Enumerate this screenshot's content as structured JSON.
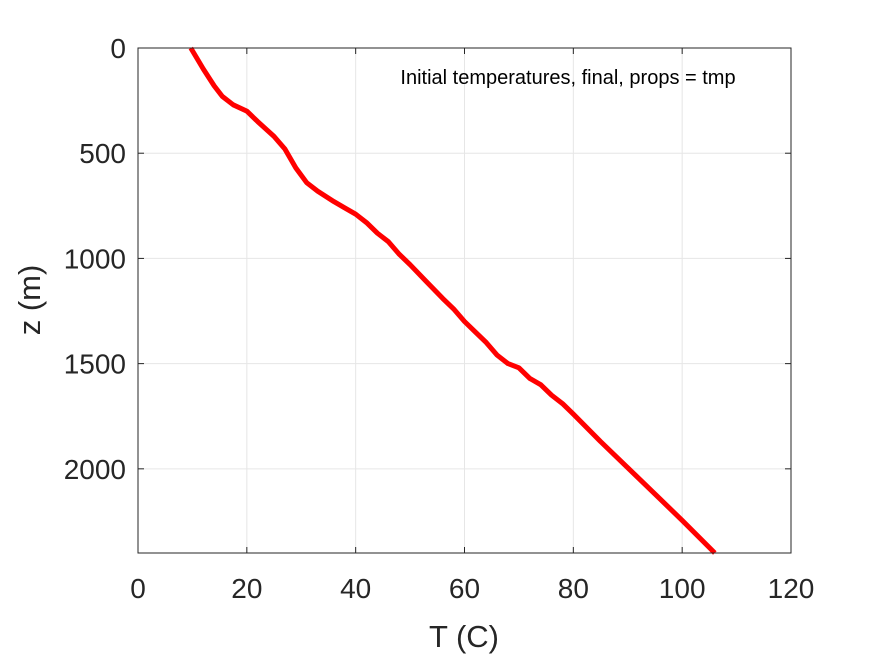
{
  "chart_data": {
    "type": "line",
    "title": "",
    "xlabel": "T (C)",
    "ylabel": "z (m)",
    "xlim": [
      0,
      120
    ],
    "ylim": [
      0,
      2400
    ],
    "y_reversed": true,
    "grid": true,
    "x_ticks": [
      0,
      20,
      40,
      60,
      80,
      100,
      120
    ],
    "y_ticks": [
      0,
      500,
      1000,
      1500,
      2000
    ],
    "x_tick_labels": [
      "0",
      "20",
      "40",
      "60",
      "80",
      "100",
      "120"
    ],
    "y_tick_labels": [
      "0",
      "500",
      "1000",
      "1500",
      "2000"
    ],
    "annotation": "Initial temperatures, final, props = tmp",
    "series": [
      {
        "color": "#ff0000",
        "x": [
          9.7,
          12,
          14,
          15.5,
          17.5,
          20,
          22,
          25,
          27,
          29,
          31,
          33,
          36,
          38,
          40,
          42,
          44,
          46,
          48,
          50,
          53,
          56,
          58,
          60,
          62,
          64,
          66,
          68,
          70,
          72,
          74,
          76,
          78,
          80,
          85,
          90,
          95,
          100,
          106
        ],
        "y": [
          0,
          100,
          180,
          230,
          270,
          300,
          350,
          420,
          480,
          570,
          640,
          680,
          730,
          760,
          790,
          830,
          880,
          920,
          980,
          1030,
          1110,
          1190,
          1240,
          1300,
          1350,
          1400,
          1460,
          1500,
          1520,
          1570,
          1600,
          1650,
          1690,
          1740,
          1870,
          1995,
          2120,
          2245,
          2400
        ]
      }
    ]
  }
}
